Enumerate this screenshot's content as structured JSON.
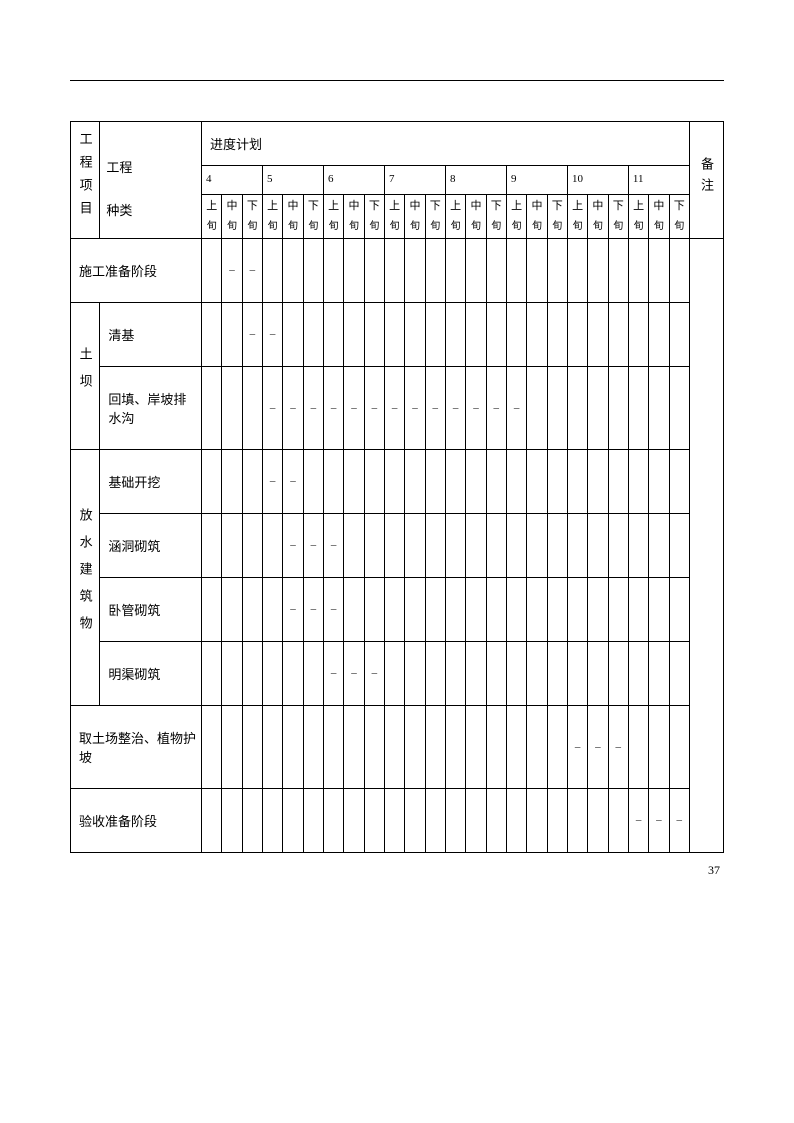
{
  "page_number": "37",
  "headers": {
    "project": "工程项目",
    "type": "工程\n种类",
    "schedule": "进度计划",
    "remark": "备注",
    "months": [
      "4",
      "5",
      "6",
      "7",
      "8",
      "9",
      "10",
      "11"
    ],
    "xun": [
      "上",
      "中",
      "下"
    ],
    "xun_suffix": "旬"
  },
  "rows": [
    {
      "proj": "",
      "type": "施工准备阶段",
      "type_span": 2,
      "marks": [
        0,
        1,
        1,
        0,
        0,
        0,
        0,
        0,
        0,
        0,
        0,
        0,
        0,
        0,
        0,
        0,
        0,
        0,
        0,
        0,
        0,
        0,
        0,
        0
      ]
    },
    {
      "proj": "土坝",
      "proj_rows": 2,
      "type": "清基",
      "marks": [
        0,
        0,
        1,
        1,
        0,
        0,
        0,
        0,
        0,
        0,
        0,
        0,
        0,
        0,
        0,
        0,
        0,
        0,
        0,
        0,
        0,
        0,
        0,
        0
      ]
    },
    {
      "type": "回填、岸坡排水沟",
      "marks": [
        0,
        0,
        0,
        1,
        1,
        1,
        1,
        1,
        1,
        1,
        1,
        1,
        1,
        1,
        1,
        1,
        0,
        0,
        0,
        0,
        0,
        0,
        0,
        0
      ]
    },
    {
      "proj": "放水建筑物",
      "proj_rows": 4,
      "type": "基础开挖",
      "marks": [
        0,
        0,
        0,
        1,
        1,
        0,
        0,
        0,
        0,
        0,
        0,
        0,
        0,
        0,
        0,
        0,
        0,
        0,
        0,
        0,
        0,
        0,
        0,
        0
      ]
    },
    {
      "type": "涵洞砌筑",
      "marks": [
        0,
        0,
        0,
        0,
        1,
        1,
        1,
        0,
        0,
        0,
        0,
        0,
        0,
        0,
        0,
        0,
        0,
        0,
        0,
        0,
        0,
        0,
        0,
        0
      ]
    },
    {
      "type": "卧管砌筑",
      "marks": [
        0,
        0,
        0,
        0,
        1,
        1,
        1,
        0,
        0,
        0,
        0,
        0,
        0,
        0,
        0,
        0,
        0,
        0,
        0,
        0,
        0,
        0,
        0,
        0
      ]
    },
    {
      "type": "明渠砌筑",
      "marks": [
        0,
        0,
        0,
        0,
        0,
        0,
        1,
        1,
        1,
        0,
        0,
        0,
        0,
        0,
        0,
        0,
        0,
        0,
        0,
        0,
        0,
        0,
        0,
        0
      ]
    },
    {
      "proj": "",
      "type": "取土场整治、植物护坡",
      "type_span": 2,
      "marks": [
        0,
        0,
        0,
        0,
        0,
        0,
        0,
        0,
        0,
        0,
        0,
        0,
        0,
        0,
        0,
        0,
        0,
        0,
        1,
        1,
        1,
        0,
        0,
        0
      ]
    },
    {
      "proj": "",
      "type": "验收准备阶段",
      "type_span": 2,
      "marks": [
        0,
        0,
        0,
        0,
        0,
        0,
        0,
        0,
        0,
        0,
        0,
        0,
        0,
        0,
        0,
        0,
        0,
        0,
        0,
        0,
        0,
        1,
        1,
        1
      ]
    }
  ],
  "style": {
    "text_color": "#000000",
    "background_color": "#ffffff",
    "border_color": "#000000",
    "base_fontsize": 13,
    "sub_fontsize": 11,
    "dash_glyph": "–"
  }
}
